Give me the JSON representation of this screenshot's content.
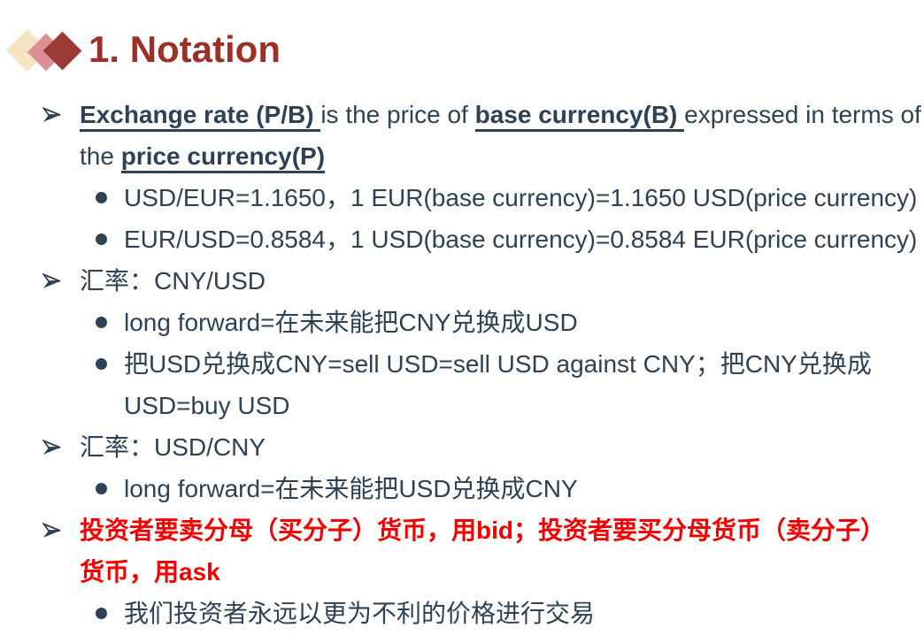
{
  "slide": {
    "title": "1. Notation",
    "colors": {
      "title": "#9C3028",
      "body": "#2E4155",
      "highlight": "#F50000",
      "diamond_back": "#F5E3C4",
      "diamond_mid": "#D98F93",
      "diamond_front": "#9A3B38"
    },
    "icons": {
      "level1_bullet": "arrowhead-right-icon",
      "level2_bullet": "filled-circle-icon"
    },
    "lines": [
      {
        "indent": 1,
        "bullet": "arrow",
        "color": "navy",
        "segments": [
          {
            "t": "Exchange rate (P/B) ",
            "b": true,
            "u": true
          },
          {
            "t": "is the price of ",
            "b": false,
            "u": false
          },
          {
            "t": "base currency(B) ",
            "b": true,
            "u": true
          },
          {
            "t": "expressed in terms of",
            "b": false,
            "u": false
          }
        ]
      },
      {
        "indent": 1,
        "bullet": "none",
        "color": "navy",
        "segments": [
          {
            "t": "the ",
            "b": false,
            "u": false
          },
          {
            "t": "price currency(P)",
            "b": true,
            "u": true
          }
        ]
      },
      {
        "indent": 2,
        "bullet": "dot",
        "color": "navy",
        "segments": [
          {
            "t": "USD/EUR=1.1650，1 EUR(base currency)=1.1650 USD(price currency)",
            "b": false,
            "u": false
          }
        ]
      },
      {
        "indent": 2,
        "bullet": "dot",
        "color": "navy",
        "segments": [
          {
            "t": "EUR/USD=0.8584，1 USD(base currency)=0.8584 EUR(price currency)",
            "b": false,
            "u": false
          }
        ]
      },
      {
        "indent": 1,
        "bullet": "arrow",
        "color": "navy",
        "segments": [
          {
            "t": "汇率：CNY/USD",
            "b": false,
            "u": false
          }
        ]
      },
      {
        "indent": 2,
        "bullet": "dot",
        "color": "navy",
        "segments": [
          {
            "t": "long forward=在未来能把CNY兑换成USD",
            "b": false,
            "u": false
          }
        ]
      },
      {
        "indent": 2,
        "bullet": "dot",
        "color": "navy",
        "segments": [
          {
            "t": "把USD兑换成CNY=sell USD=sell USD against CNY；把CNY兑换成",
            "b": false,
            "u": false
          }
        ]
      },
      {
        "indent": 2,
        "bullet": "none",
        "color": "navy",
        "segments": [
          {
            "t": "USD=buy USD",
            "b": false,
            "u": false
          }
        ]
      },
      {
        "indent": 1,
        "bullet": "arrow",
        "color": "navy",
        "segments": [
          {
            "t": "汇率：USD/CNY",
            "b": false,
            "u": false
          }
        ]
      },
      {
        "indent": 2,
        "bullet": "dot",
        "color": "navy",
        "segments": [
          {
            "t": "long forward=在未来能把USD兑换成CNY",
            "b": false,
            "u": false
          }
        ]
      },
      {
        "indent": 1,
        "bullet": "arrow",
        "color": "red",
        "segments": [
          {
            "t": "投资者要卖分母（买分子）货币，用bid；投资者要买分母货币（卖分子）",
            "b": true,
            "u": false
          }
        ]
      },
      {
        "indent": 1,
        "bullet": "none",
        "color": "red",
        "segments": [
          {
            "t": "货币，用ask",
            "b": true,
            "u": false
          }
        ]
      },
      {
        "indent": 2,
        "bullet": "dot",
        "color": "navy",
        "segments": [
          {
            "t": "我们投资者永远以更为不利的价格进行交易",
            "b": false,
            "u": false
          }
        ]
      }
    ]
  }
}
